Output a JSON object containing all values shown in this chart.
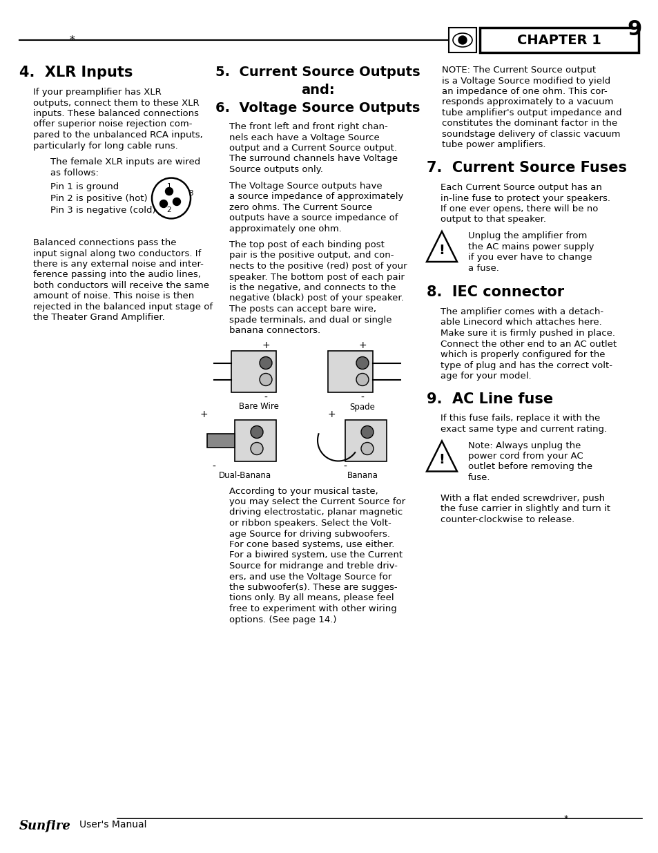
{
  "page_width": 9.54,
  "page_height": 12.35,
  "dpi": 100,
  "bg_color": "#ffffff",
  "chapter_text": "CHAPTER 1",
  "page_number": "9",
  "footer_brand": "Sunfire",
  "footer_text": "User's Manual",
  "section4_title": "4.  XLR Inputs",
  "section4_body": "If your preamplifier has XLR\noutputs, connect them to these XLR\ninputs. These balanced connections\noffer superior noise rejection com-\npared to the unbalanced RCA inputs,\nparticularly for long cable runs.",
  "section4_indent1": "The female XLR inputs are wired\nas follows:",
  "section4_pin1": "Pin 1 is ground",
  "section4_pin2": "Pin 2 is positive (hot)",
  "section4_pin3": "Pin 3 is negative (cold)",
  "section4_body2": "Balanced connections pass the\ninput signal along two conductors. If\nthere is any external noise and inter-\nference passing into the audio lines,\nboth conductors will receive the same\namount of noise. This noise is then\nrejected in the balanced input stage of\nthe Theater Grand Amplifier.",
  "section5_line1": "5.  Current Source Outputs",
  "section5_line2": "and:",
  "section6_title": "6.  Voltage Source Outputs",
  "section56_body1": "The front left and front right chan-\nnels each have a Voltage Source\noutput and a Current Source output.\nThe surround channels have Voltage\nSource outputs only.",
  "section56_body2": "The Voltage Source outputs have\na source impedance of approximately\nzero ohms. The Current Source\noutputs have a source impedance of\napproximately one ohm.",
  "section56_body3": "The top post of each binding post\npair is the positive output, and con-\nnects to the positive (red) post of your\nspeaker. The bottom post of each pair\nis the negative, and connects to the\nnegative (black) post of your speaker.\nThe posts can accept bare wire,\nspade terminals, and dual or single\nbanana connectors.",
  "connector_labels": [
    "Bare Wire",
    "Spade",
    "Dual-Banana",
    "Banana"
  ],
  "section56_body4": "According to your musical taste,\nyou may select the Current Source for\ndriving electrostatic, planar magnetic\nor ribbon speakers. Select the Volt-\nage Source for driving subwoofers.\nFor cone based systems, use either.\nFor a biwired system, use the Current\nSource for midrange and treble driv-\ners, and use the Voltage Source for\nthe subwoofer(s). These are sugges-\ntions only. By all means, please feel\nfree to experiment with other wiring\noptions. (See page 14.)",
  "section3_note": "NOTE: The Current Source output\nis a Voltage Source modified to yield\nan impedance of one ohm. This cor-\nresponds approximately to a vacuum\ntube amplifier's output impedance and\nconstitutes the dominant factor in the\nsoundstage delivery of classic vacuum\ntube power amplifiers.",
  "section7_title": "7.  Current Source Fuses",
  "section7_body": "Each Current Source output has an\nin-line fuse to protect your speakers.\nIf one ever opens, there will be no\noutput to that speaker.",
  "section7_warning": "Unplug the amplifier from\nthe AC mains power supply\nif you ever have to change\na fuse.",
  "section8_title": "8.  IEC connector",
  "section8_body": "The amplifier comes with a detach-\nable Linecord which attaches here.\nMake sure it is firmly pushed in place.\nConnect the other end to an AC outlet\nwhich is properly configured for the\ntype of plug and has the correct volt-\nage for your model.",
  "section9_title": "9.  AC Line fuse",
  "section9_body": "If this fuse fails, replace it with the\nexact same type and current rating.",
  "section9_warning": "Note: Always unplug the\npower cord from your AC\noutlet before removing the\nfuse.",
  "section9_body2": "With a flat ended screwdriver, push\nthe fuse carrier in slightly and turn it\ncounter-clockwise to release."
}
